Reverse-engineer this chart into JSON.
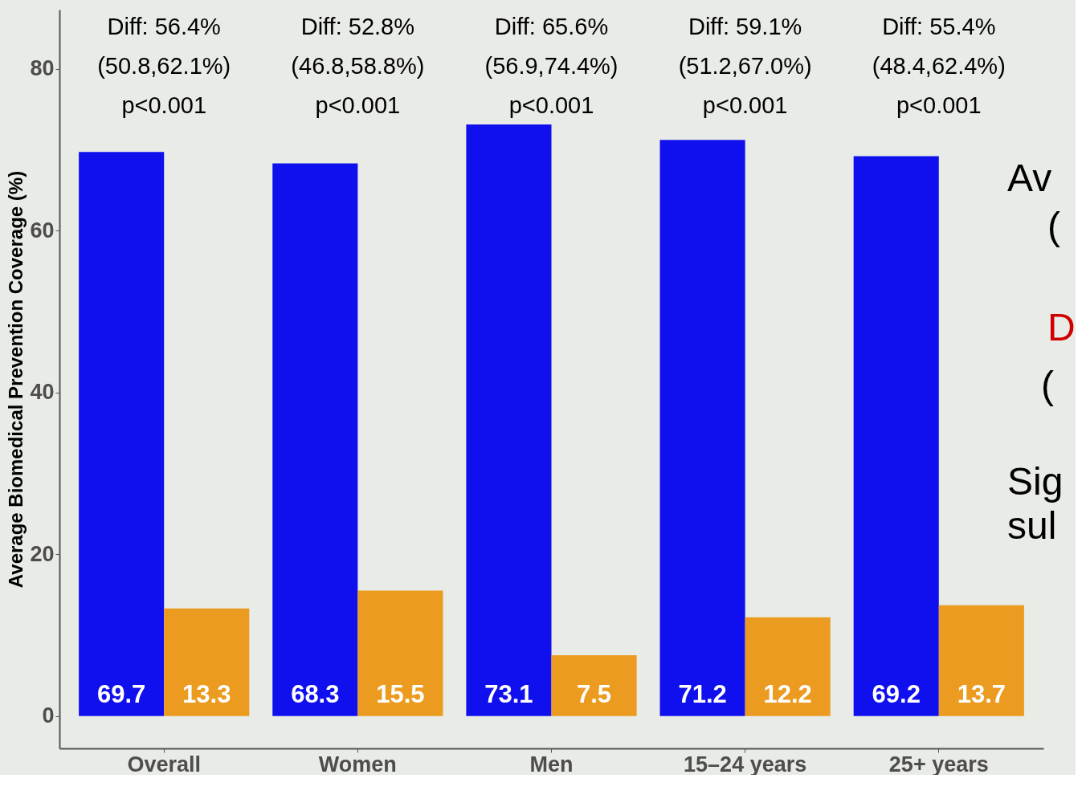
{
  "chart_data": {
    "type": "bar",
    "ylabel": "Average Biomedical Prevention Coverage (%)",
    "categories": [
      "Overall",
      "Women",
      "Men",
      "15–24 years",
      "25+ years"
    ],
    "series": [
      {
        "color": "#1010ee",
        "values": [
          69.7,
          68.3,
          73.1,
          71.2,
          69.2
        ]
      },
      {
        "color": "#eb9b1f",
        "values": [
          13.3,
          15.5,
          7.5,
          12.2,
          13.7
        ]
      }
    ],
    "ylim": [
      -4,
      87.3
    ],
    "yticks": [
      0,
      20,
      40,
      60,
      80
    ],
    "grid": false,
    "legend": false,
    "data_labels": true,
    "annotations": [
      "Diff: 56.4%\n(50.8,62.1%)\np<0.001",
      "Diff: 52.8%\n(46.8,58.8%)\np<0.001",
      "Diff: 65.6%\n(56.9,74.4%)\np<0.001",
      "Diff: 59.1%\n(51.2,67.0%)\np<0.001",
      "Diff: 55.4%\n(48.4,62.4%)\np<0.001",
      "Av",
      "(",
      "D",
      "(",
      "Sig",
      "sul"
    ]
  }
}
